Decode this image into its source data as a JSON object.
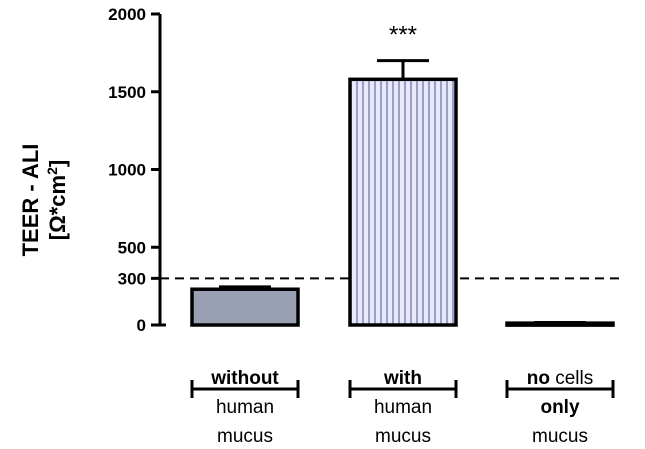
{
  "chart_data": {
    "type": "bar",
    "title": "",
    "ylabel_line1": "TEER - ALI",
    "ylabel_unit_base": "[Ω*cm",
    "ylabel_unit_sup": "2",
    "ylabel_unit_close": "]",
    "ylim": [
      0,
      2000
    ],
    "yticks": [
      0,
      300,
      500,
      1000,
      1500,
      2000
    ],
    "threshold": 300,
    "grid": false,
    "categories": [
      {
        "key": "without",
        "lines": [
          [
            {
              "text": "without",
              "bold": true
            }
          ],
          [
            {
              "text": "human",
              "bold": false
            }
          ],
          [
            {
              "text": "mucus",
              "bold": false
            }
          ]
        ]
      },
      {
        "key": "with",
        "lines": [
          [
            {
              "text": "with",
              "bold": true
            }
          ],
          [
            {
              "text": "human",
              "bold": false
            }
          ],
          [
            {
              "text": "mucus",
              "bold": false
            }
          ]
        ]
      },
      {
        "key": "no_cells",
        "lines": [
          [
            {
              "text": "no",
              "bold": true
            },
            {
              "text": " cells",
              "bold": false
            }
          ],
          [
            {
              "text": "only",
              "bold": true
            }
          ],
          [
            {
              "text": "mucus",
              "bold": false
            }
          ]
        ]
      }
    ],
    "values": [
      230,
      1580,
      12
    ],
    "errors": [
      15,
      120,
      4
    ],
    "significance": [
      "",
      "***",
      ""
    ],
    "colors": {
      "without_fill": "#9aa0b3",
      "with_fill": "#e8e8fb",
      "with_stripe": "#6a6fa8",
      "no_cells_fill": "#9aa0b3",
      "stroke": "#000000"
    },
    "patterns": [
      "solid",
      "vertical-stripes",
      "solid"
    ]
  }
}
